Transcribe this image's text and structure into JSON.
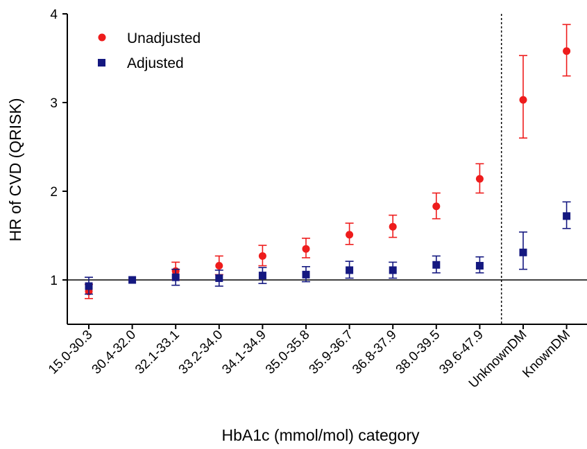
{
  "chart_data": {
    "type": "scatter",
    "title": "",
    "xlabel": "HbA1c (mmol/mol) category",
    "ylabel": "HR of CVD (QRISK)",
    "ylim": [
      0.5,
      4
    ],
    "yticks": [
      "1",
      "2",
      "3",
      "4"
    ],
    "reference_line_y": 1,
    "divider_after_category": "39.6-47.9",
    "legend_position": "top-left",
    "categories": [
      "15.0-30.3",
      "30.4-32.0",
      "32.1-33.1",
      "33.2-34.0",
      "34.1-34.9",
      "35.0-35.8",
      "35.9-36.7",
      "36.8-37.9",
      "38.0-39.5",
      "39.6-47.9",
      "UnknownDM",
      "KnownDM"
    ],
    "series": [
      {
        "name": "Unadjusted",
        "color": "#ee1c1c",
        "marker": "circle",
        "values": [
          0.87,
          1.0,
          1.1,
          1.16,
          1.27,
          1.35,
          1.51,
          1.6,
          1.83,
          2.14,
          3.03,
          3.58
        ],
        "lower": [
          0.79,
          1.0,
          1.0,
          1.06,
          1.16,
          1.25,
          1.4,
          1.48,
          1.69,
          1.98,
          2.6,
          3.3
        ],
        "upper": [
          0.95,
          1.0,
          1.2,
          1.27,
          1.39,
          1.47,
          1.64,
          1.73,
          1.98,
          2.31,
          3.53,
          3.88
        ]
      },
      {
        "name": "Adjusted",
        "color": "#141880",
        "marker": "square",
        "values": [
          0.93,
          1.0,
          1.03,
          1.02,
          1.05,
          1.06,
          1.11,
          1.11,
          1.17,
          1.16,
          1.31,
          1.72
        ],
        "lower": [
          0.84,
          1.0,
          0.94,
          0.93,
          0.96,
          0.98,
          1.02,
          1.02,
          1.08,
          1.08,
          1.12,
          1.58
        ],
        "upper": [
          1.03,
          1.0,
          1.12,
          1.11,
          1.14,
          1.15,
          1.21,
          1.2,
          1.27,
          1.26,
          1.54,
          1.88
        ]
      }
    ]
  }
}
